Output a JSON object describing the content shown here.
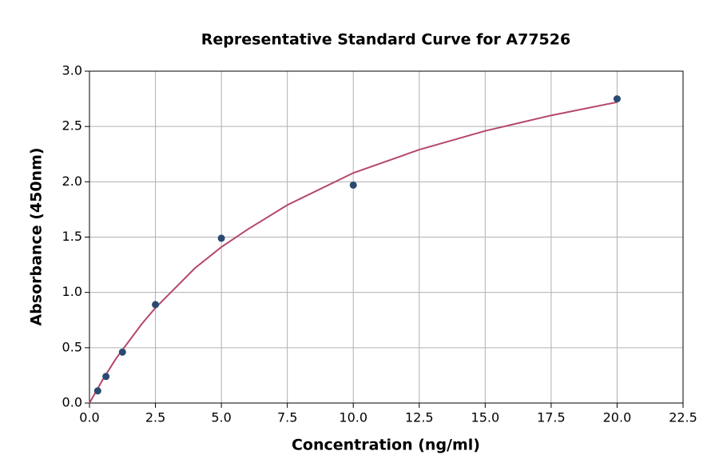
{
  "chart_data": {
    "type": "scatter",
    "title": "Representative Standard Curve for A77526",
    "xlabel": "Concentration (ng/ml)",
    "ylabel": "Absorbance (450nm)",
    "series": [
      {
        "type": "scatter",
        "color": "#2a4a72",
        "x": [
          0.3125,
          0.625,
          1.25,
          2.5,
          5,
          10,
          20
        ],
        "values": [
          0.11,
          0.24,
          0.46,
          0.89,
          1.49,
          1.97,
          2.75
        ]
      },
      {
        "type": "line",
        "color": "#b5476b",
        "x": [
          0,
          0.5,
          1,
          1.5,
          2,
          2.5,
          3,
          4,
          5,
          6,
          7.5,
          10,
          12.5,
          15,
          17.5,
          20
        ],
        "values": [
          0,
          0.21,
          0.4,
          0.56,
          0.72,
          0.86,
          0.98,
          1.22,
          1.41,
          1.57,
          1.79,
          2.08,
          2.29,
          2.46,
          2.6,
          2.72
        ]
      }
    ],
    "xlim": [
      0,
      22.5
    ],
    "ylim": [
      0,
      3
    ],
    "xticks": [
      {
        "value": 0,
        "label": "0.0"
      },
      {
        "value": 2.5,
        "label": "2.5"
      },
      {
        "value": 5,
        "label": "5.0"
      },
      {
        "value": 7.5,
        "label": "7.5"
      },
      {
        "value": 10,
        "label": "10.0"
      },
      {
        "value": 12.5,
        "label": "12.5"
      },
      {
        "value": 15,
        "label": "15.0"
      },
      {
        "value": 17.5,
        "label": "17.5"
      },
      {
        "value": 20,
        "label": "20.0"
      },
      {
        "value": 22.5,
        "label": "22.5"
      }
    ],
    "yticks": [
      {
        "value": 0,
        "label": "0.0"
      },
      {
        "value": 0.5,
        "label": "0.5"
      },
      {
        "value": 1,
        "label": "1.0"
      },
      {
        "value": 1.5,
        "label": "1.5"
      },
      {
        "value": 2,
        "label": "2.0"
      },
      {
        "value": 2.5,
        "label": "2.5"
      },
      {
        "value": 3,
        "label": "3.0"
      }
    ],
    "grid": true
  }
}
